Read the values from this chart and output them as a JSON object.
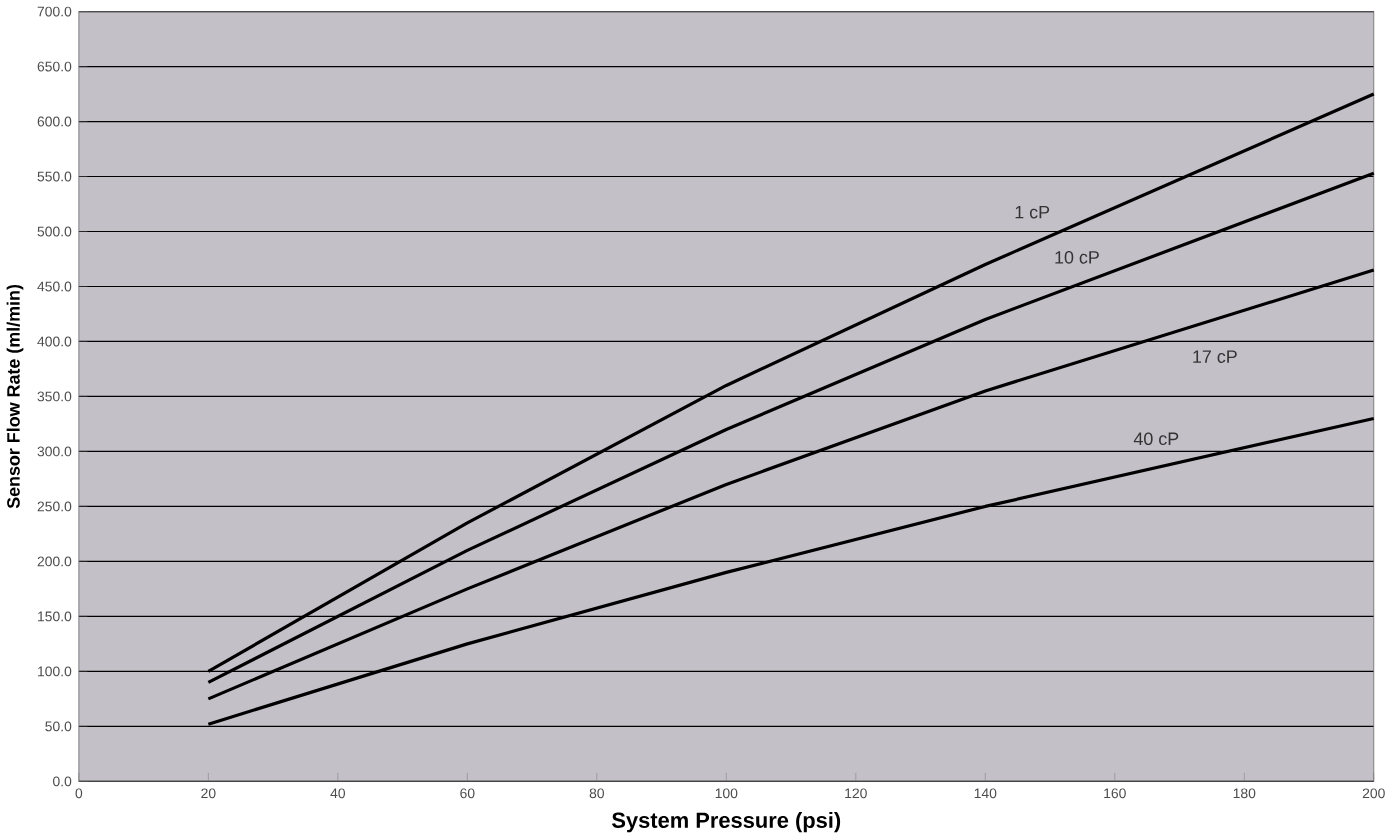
{
  "chart_data": {
    "type": "line",
    "xlabel": "System Pressure (psi)",
    "ylabel": "Sensor Flow Rate (ml/min)",
    "xlim": [
      0,
      200
    ],
    "xticks": [
      0,
      20,
      40,
      60,
      80,
      100,
      120,
      140,
      160,
      180,
      200
    ],
    "ylim": [
      0,
      700
    ],
    "yticks": [
      {
        "value": 0,
        "label": "0.0"
      },
      {
        "value": 50,
        "label": "50.0"
      },
      {
        "value": 100,
        "label": "100.0"
      },
      {
        "value": 150,
        "label": "150.0"
      },
      {
        "value": 200,
        "label": "200.0"
      },
      {
        "value": 250,
        "label": "250.0"
      },
      {
        "value": 300,
        "label": "300.0"
      },
      {
        "value": 350,
        "label": "350.0"
      },
      {
        "value": 400,
        "label": "400.0"
      },
      {
        "value": 450,
        "label": "450.0"
      },
      {
        "value": 500,
        "label": "500.0"
      },
      {
        "value": 550,
        "label": "550.0"
      },
      {
        "value": 600,
        "label": "600.0"
      },
      {
        "value": 650,
        "label": "650.0"
      },
      {
        "value": 700,
        "label": "700.0"
      }
    ],
    "grid": "y",
    "marker": "none",
    "line_style": "solid",
    "x": [
      20,
      60,
      100,
      140,
      200
    ],
    "series": [
      {
        "name": "1 cP",
        "color": "#000000",
        "values": [
          100,
          235,
          360,
          470,
          625
        ]
      },
      {
        "name": "10 cP",
        "color": "#000000",
        "values": [
          90,
          210,
          320,
          420,
          553
        ]
      },
      {
        "name": "17 cP",
        "color": "#000000",
        "values": [
          75,
          175,
          270,
          355,
          465
        ]
      },
      {
        "name": "40 cP",
        "color": "#000000",
        "values": [
          52,
          125,
          190,
          250,
          330
        ]
      }
    ]
  }
}
